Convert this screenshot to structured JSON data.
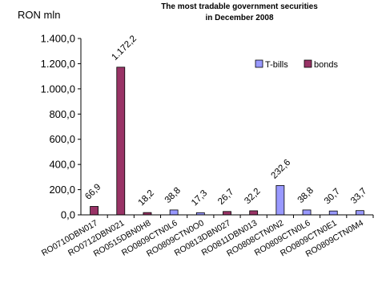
{
  "chart_data": {
    "type": "bar",
    "title_lines": [
      "The most tradable government securities",
      "in December 2008"
    ],
    "unit_label": "RON mln",
    "xlabel": "",
    "ylabel": "",
    "ylim": [
      0,
      1400
    ],
    "yticks": [
      "0,0",
      "200,0",
      "400,0",
      "600,0",
      "800,0",
      "1.000,0",
      "1.200,0",
      "1.400,0"
    ],
    "grid": false,
    "legend_position": "top-right",
    "categories": [
      "RO0710DBN017",
      "RO0712DBN021",
      "RO0515DBN0H8",
      "RO0809CTN0L6",
      "RO0809CTN0O0",
      "RO0813DBN027",
      "RO0811DBN013",
      "RO0808CTN0N2",
      "RO0809CTN0L6",
      "RO0809CTN0E1",
      "RO0809CTN0M4"
    ],
    "series": [
      {
        "name": "T-bills",
        "color": "#9999ff",
        "values": [
          null,
          null,
          null,
          38.8,
          17.3,
          null,
          null,
          232.6,
          38.8,
          30.7,
          33.7
        ]
      },
      {
        "name": "bonds",
        "color": "#993366",
        "values": [
          66.9,
          1172.2,
          18.2,
          null,
          null,
          26.7,
          32.2,
          null,
          null,
          null,
          null
        ]
      }
    ],
    "data_labels": [
      "66,9",
      "1.172,2",
      "18,2",
      "38,8",
      "17,3",
      "26,7",
      "32,2",
      "232,6",
      "38,8",
      "30,7",
      "33,7"
    ]
  }
}
